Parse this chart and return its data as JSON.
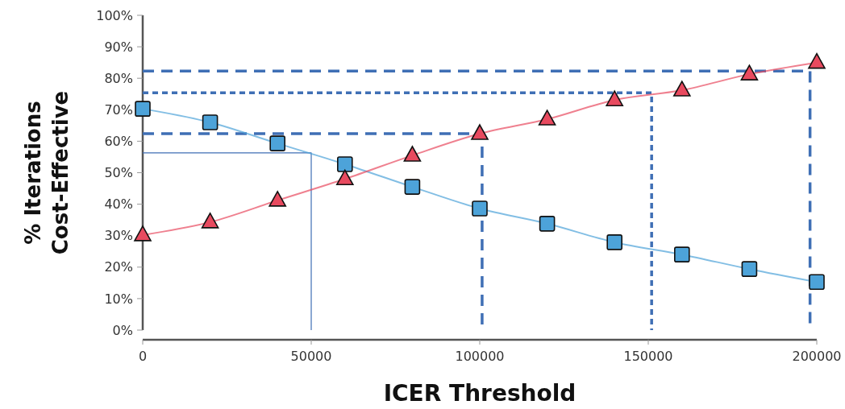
{
  "chart_data": {
    "type": "line",
    "xlabel": "ICER Threshold",
    "ylabel": "% Iterations\nCost-Effective",
    "xlim": [
      0,
      200000
    ],
    "xticks": [
      0,
      50000,
      100000,
      150000,
      200000
    ],
    "ylim": [
      0,
      100
    ],
    "yticks": [
      {
        "value": 0,
        "label": "0%"
      },
      {
        "value": 10,
        "label": "10%"
      },
      {
        "value": 20,
        "label": "20%"
      },
      {
        "value": 30,
        "label": "30%"
      },
      {
        "value": 40,
        "label": "40%"
      },
      {
        "value": 50,
        "label": "50%"
      },
      {
        "value": 60,
        "label": "60%"
      },
      {
        "value": 70,
        "label": "70%"
      },
      {
        "value": 80,
        "label": "80%"
      },
      {
        "value": 90,
        "label": "90%"
      },
      {
        "value": 100,
        "label": "100%"
      }
    ],
    "grid": false,
    "series": [
      {
        "color": "#3f6fb5",
        "line_style": "solid",
        "marker": "none",
        "x": [
          0,
          50000,
          50000
        ],
        "values": [
          56.3,
          56.3,
          0
        ]
      },
      {
        "color": "#3f6fb5",
        "line_style": "dashed",
        "marker": "none",
        "x": [
          0,
          100700,
          100700
        ],
        "values": [
          62.4,
          62.4,
          0
        ]
      },
      {
        "color": "#3f6fb5",
        "line_style": "dotted",
        "marker": "none",
        "x": [
          0,
          151000,
          151000
        ],
        "values": [
          75.4,
          75.4,
          0
        ]
      },
      {
        "color": "#3f6fb5",
        "line_style": "dashed",
        "marker": "none",
        "x": [
          0,
          198000,
          198000
        ],
        "values": [
          82.3,
          82.3,
          0
        ]
      },
      {
        "color": "#4da3d9",
        "line_style": "solid",
        "marker": "square",
        "x": [
          0,
          20000,
          40000,
          60000,
          80000,
          100000,
          120000,
          140000,
          160000,
          180000,
          200000
        ],
        "values": [
          70.3,
          66,
          59.3,
          52.7,
          45.5,
          38.6,
          33.8,
          27.9,
          24,
          19.4,
          15.3
        ]
      },
      {
        "color": "#e84a5f",
        "line_style": "solid",
        "marker": "triangle",
        "x": [
          0,
          20000,
          40000,
          60000,
          80000,
          100000,
          120000,
          140000,
          160000,
          180000,
          200000
        ],
        "values": [
          30.2,
          34.3,
          41.2,
          48,
          55.5,
          62.4,
          67,
          73.1,
          76.2,
          81.3,
          85
        ]
      }
    ]
  }
}
